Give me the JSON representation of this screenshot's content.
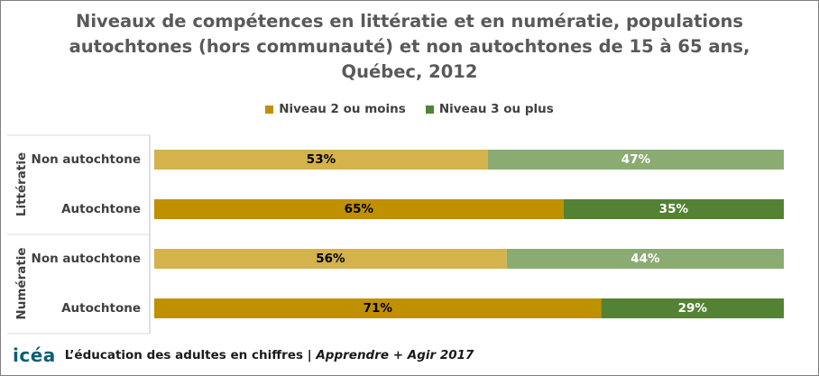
{
  "chart_data": {
    "type": "bar",
    "orientation": "horizontal",
    "stacked": true,
    "title_lines": [
      "Niveaux de compétences  en littératie et en numératie, populations",
      "autochtones (hors communauté) et non autochtones de 15 à 65 ans,",
      "Québec, 2012"
    ],
    "legend_position": "top",
    "series": [
      {
        "name": "Niveau 2 ou moins"
      },
      {
        "name": "Niveau 3 ou plus"
      }
    ],
    "groups": [
      {
        "label": "Littératie",
        "rows": [
          {
            "category": "Non autochtone",
            "values": [
              53,
              47
            ],
            "labels": [
              "53%",
              "47%"
            ],
            "colors": [
              "#d4b24c",
              "#8aab72"
            ],
            "label_colors": [
              "#000000",
              "#ffffff"
            ]
          },
          {
            "category": "Autochtone",
            "values": [
              65,
              35
            ],
            "labels": [
              "65%",
              "35%"
            ],
            "colors": [
              "#bf9000",
              "#548235"
            ],
            "label_colors": [
              "#000000",
              "#ffffff"
            ]
          }
        ]
      },
      {
        "label": "Numératie",
        "rows": [
          {
            "category": "Non autochtone",
            "values": [
              56,
              44
            ],
            "labels": [
              "56%",
              "44%"
            ],
            "colors": [
              "#d4b24c",
              "#8aab72"
            ],
            "label_colors": [
              "#000000",
              "#ffffff"
            ]
          },
          {
            "category": "Autochtone",
            "values": [
              71,
              29
            ],
            "labels": [
              "71%",
              "29%"
            ],
            "colors": [
              "#bf9000",
              "#548235"
            ],
            "label_colors": [
              "#000000",
              "#ffffff"
            ]
          }
        ]
      }
    ],
    "xlim": [
      0,
      100
    ],
    "grid": false
  },
  "legend_colors": [
    "#bf9000",
    "#548235"
  ],
  "footer": {
    "logo": "icéa",
    "text": "L’éducation des adultes en chiffres | ",
    "text_italic": "Apprendre + Agir 2017"
  }
}
